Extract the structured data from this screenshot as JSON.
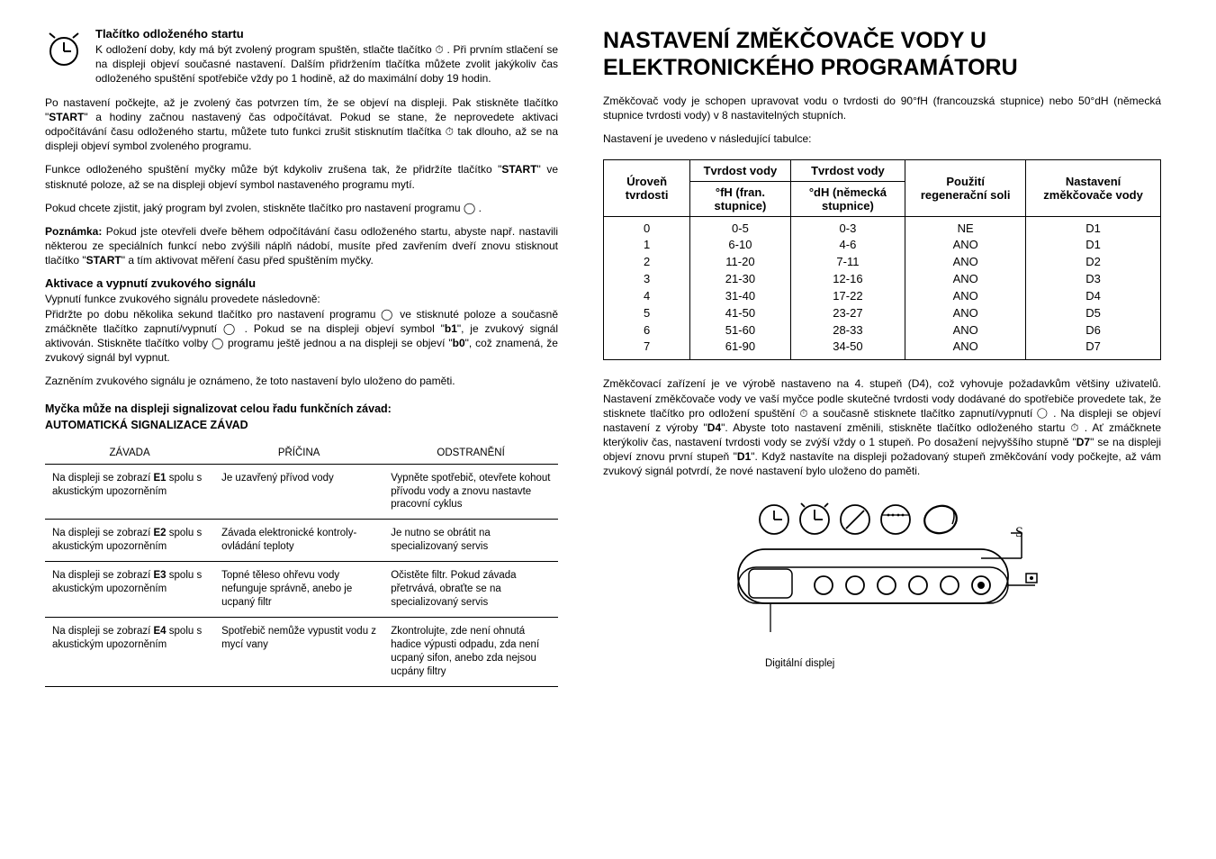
{
  "left": {
    "clock_icon": "clock-delay-icon",
    "s1_title": "Tlačítko odloženého startu",
    "s1_p1": "K odložení doby, kdy má být zvolený program spuštěn, stlačte tlačítko ⏱ . Při prvním stlačení se na displeji objeví současné nastavení. Dalším přidržením tlačítka můžete zvolit jakýkoliv čas odloženého spuštění spotřebiče vždy po 1 hodině, až do maximální doby 19 hodin.",
    "s1_p2a": "Po nastavení počkejte, až je zvolený čas potvrzen tím, že se objeví na displeji. Pak stiskněte tlačítko \"",
    "s1_p2b": "START",
    "s1_p2c": "\" a hodiny začnou nastavený čas odpočítávat. Pokud se stane, že neprovedete aktivaci odpočítávání času odloženého startu, můžete tuto funkci zrušit stisknutím tlačítka ⏱ tak dlouho, až se na displeji objeví symbol zvoleného programu.",
    "s1_p3a": "Funkce odloženého spuštění myčky může být kdykoliv zrušena tak, že přidržíte tlačítko \"",
    "s1_p3b": "START",
    "s1_p3c": "\" ve stisknuté poloze, až se na displeji objeví symbol nastaveného programu mytí.",
    "s1_p4": "Pokud chcete zjistit, jaký program byl zvolen, stiskněte tlačítko pro nastavení programu ◯ .",
    "s1_p5a": "Poznámka:",
    "s1_p5b": " Pokud jste otevřeli dveře během odpočítávání času odloženého startu, abyste např. nastavili některou ze speciálních funkcí nebo zvýšili náplň nádobí, musíte před zavřením dveří znovu stisknout tlačítko \"",
    "s1_p5c": "START",
    "s1_p5d": "\" a tím aktivovat měření času před spuštěním myčky.",
    "s2_title": "Aktivace a vypnutí zvukového signálu",
    "s2_p1": "Vypnutí funkce zvukového signálu provedete následovně:",
    "s2_p2a": "Přidržte po dobu několika sekund tlačítko pro nastavení programu ◯ ve stisknuté poloze a současně zmáčkněte tlačítko zapnutí/vypnutí ◯ . Pokud se na displeji objeví symbol \"",
    "s2_p2b": "b1",
    "s2_p2c": "\", je zvukový signál aktivován. Stiskněte tlačítko volby ◯ programu ještě jednou a na displeji se objeví \"",
    "s2_p2d": "b0",
    "s2_p2e": "\", což znamená, že zvukový signál byl vypnut.",
    "s2_p3": "Zazněním zvukového signálu je oznámeno, že toto nastavení bylo uloženo do paměti.",
    "fault_h1": "Myčka může na displeji signalizovat celou řadu funkčních závad:",
    "fault_h2": "AUTOMATICKÁ SIGNALIZACE ZÁVAD",
    "fault_headers": [
      "ZÁVADA",
      "PŘÍČINA",
      "ODSTRANĚNÍ"
    ],
    "fault_rows": [
      {
        "fault_a": "Na displeji se zobrazí ",
        "fault_b": "E1",
        "fault_c": " spolu s akustickým upozorněním",
        "cause": "Je uzavřený přívod vody",
        "fix": "Vypněte spotřebič, otevřete kohout přívodu vody a znovu nastavte pracovní cyklus"
      },
      {
        "fault_a": "Na displeji se zobrazí ",
        "fault_b": "E2",
        "fault_c": " spolu s akustickým upozorněním",
        "cause": "Závada elektronické kontroly-ovládání teploty",
        "fix": "Je nutno se obrátit na specializovaný servis"
      },
      {
        "fault_a": "Na displeji se zobrazí ",
        "fault_b": "E3",
        "fault_c": " spolu s akustickým upozorněním",
        "cause": "Topné těleso ohřevu vody nefunguje správně, anebo je ucpaný filtr",
        "fix": "Očistěte filtr.\nPokud závada přetrvává, obraťte se na specializovaný servis"
      },
      {
        "fault_a": "Na displeji se zobrazí ",
        "fault_b": "E4",
        "fault_c": " spolu s akustickým upozorněním",
        "cause": "Spotřebič nemůže vypustit vodu z mycí vany",
        "fix": "Zkontrolujte, zde není ohnutá hadice výpusti odpadu, zda není ucpaný sifon, anebo zda nejsou ucpány filtry"
      }
    ]
  },
  "right": {
    "title1": "NASTAVENÍ ZMĚKČOVAČE VODY U",
    "title2": "ELEKTRONICKÉHO PROGRAMÁTORU",
    "intro": "Změkčovač vody je schopen upravovat vodu o tvrdosti do 90°fH (francouzská stupnice) nebo 50°dH (německá stupnice tvrdosti vody) v 8 nastavitelných stupních.",
    "intro2": "Nastavení je uvedeno v následující tabulce:",
    "ht": {
      "h_level": "Úroveň tvrdosti",
      "h_fh1": "Tvrdost vody",
      "h_fh2": "°fH (fran. stupnice)",
      "h_dh1": "Tvrdost vody",
      "h_dh2": "°dH (německá stupnice)",
      "h_salt": "Použití regenerační soli",
      "h_set": "Nastavení změkčovače vody",
      "rows": [
        [
          "0",
          "0-5",
          "0-3",
          "NE",
          "D1"
        ],
        [
          "1",
          "6-10",
          "4-6",
          "ANO",
          "D1"
        ],
        [
          "2",
          "11-20",
          "7-11",
          "ANO",
          "D2"
        ],
        [
          "3",
          "21-30",
          "12-16",
          "ANO",
          "D3"
        ],
        [
          "4",
          "31-40",
          "17-22",
          "ANO",
          "D4"
        ],
        [
          "5",
          "41-50",
          "23-27",
          "ANO",
          "D5"
        ],
        [
          "6",
          "51-60",
          "28-33",
          "ANO",
          "D6"
        ],
        [
          "7",
          "61-90",
          "34-50",
          "ANO",
          "D7"
        ]
      ]
    },
    "p1a": "Změkčovací zařízení je ve výrobě nastaveno na 4. stupeň (D4), což vyhovuje požadavkům většiny uživatelů. Nastavení změkčovače vody ve vaší myčce podle skutečné tvrdosti vody dodávané do spotřebiče provedete tak, že stisknete tlačítko pro odložení spuštění ⏱ a současně stisknete tlačítko zapnutí/vypnutí ◯ . Na displeji se objeví nastavení z výroby \"",
    "p1b": "D4",
    "p1c": "\". Abyste toto nastavení změnili, stiskněte tlačítko odloženého startu ⏱ . Ať zmáčknete kterýkoliv čas, nastavení tvrdosti vody se zvýší vždy o 1 stupeň. Po dosažení nejvyššího stupně \"",
    "p1d": "D7",
    "p1e": "\" se na displeji objeví znovu první stupeň \"",
    "p1f": "D1",
    "p1g": "\". Když nastavíte na displeji požadovaný stupeň změkčování vody počkejte, až vám zvukový signál potvrdí, že nové nastavení bylo uloženo do paměti.",
    "digital_label": "Digitální displej"
  }
}
